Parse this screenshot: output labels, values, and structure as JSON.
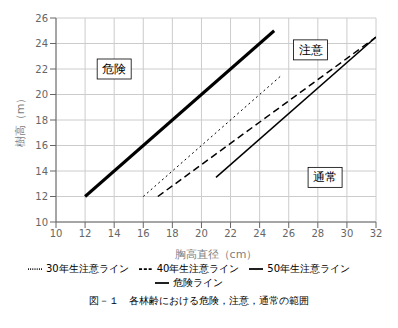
{
  "chart_data": {
    "type": "line",
    "xlabel": "胸高直径（cm）",
    "ylabel": "樹高（m）",
    "caption": "図－１　各林齢における危険，注意，通常の範囲",
    "xlim": [
      10,
      32
    ],
    "ylim": [
      10,
      26
    ],
    "xticks": [
      10,
      12,
      14,
      16,
      18,
      20,
      22,
      24,
      26,
      28,
      30,
      32
    ],
    "yticks": [
      10,
      12,
      14,
      16,
      18,
      20,
      22,
      24,
      26
    ],
    "grid": true,
    "legend": "bottom",
    "series": [
      {
        "name": "危険ライン",
        "color": "black",
        "line_style": "solid",
        "x": [
          12,
          25
        ],
        "values": [
          12,
          25
        ]
      },
      {
        "name": "30年生注意ライン",
        "color": "black",
        "line_style": "dotted",
        "x": [
          16,
          25.5
        ],
        "values": [
          12,
          21.5
        ]
      },
      {
        "name": "40年生注意ライン",
        "color": "black",
        "line_style": "dashed",
        "x": [
          17,
          32
        ],
        "values": [
          12,
          24.5
        ]
      },
      {
        "name": "50年生注意ライン",
        "color": "black",
        "line_style": "solid",
        "x": [
          21,
          32
        ],
        "values": [
          13.5,
          24.5
        ]
      }
    ],
    "annotations": [
      {
        "text": "危険",
        "x": 14,
        "y": 22
      },
      {
        "text": "注意",
        "x": 27.5,
        "y": 23.5
      },
      {
        "text": "通常",
        "x": 28.5,
        "y": 13.5
      }
    ]
  }
}
